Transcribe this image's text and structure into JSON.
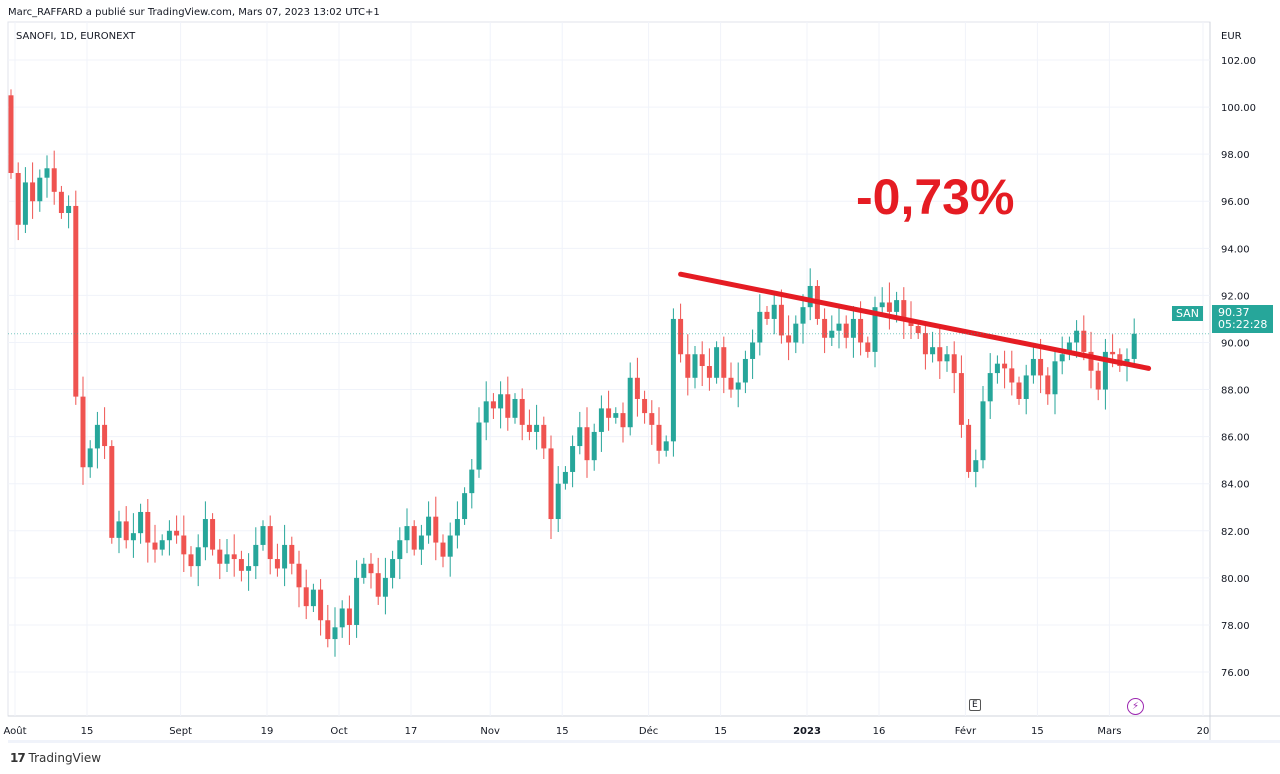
{
  "header": {
    "publisher": "Marc_RAFFARD a publié sur TradingView.com, Mars 07, 2023 13:02 UTC+1",
    "symbol": "SANOFI, 1D, EURONEXT"
  },
  "annotation": "-0,73%",
  "price_badge": {
    "ticker": "SAN",
    "price": "90.37",
    "countdown": "05:22:28",
    "color": "#26a69a"
  },
  "footer": {
    "logo": "TradingView"
  },
  "markers": {
    "earnings": "E"
  },
  "chart_data": {
    "type": "candlestick",
    "currency": "EUR",
    "ylim": [
      74.5,
      103
    ],
    "yticks": [
      "102.00",
      "100.00",
      "98.00",
      "96.00",
      "94.00",
      "92.00",
      "90.00",
      "88.00",
      "86.00",
      "84.00",
      "82.00",
      "80.00",
      "78.00",
      "76.00"
    ],
    "xticks": [
      {
        "label": "Août",
        "i": 0
      },
      {
        "label": "15",
        "i": 10
      },
      {
        "label": "Sept",
        "i": 23
      },
      {
        "label": "19",
        "i": 35
      },
      {
        "label": "Oct",
        "i": 45
      },
      {
        "label": "17",
        "i": 55
      },
      {
        "label": "Nov",
        "i": 66
      },
      {
        "label": "15",
        "i": 76
      },
      {
        "label": "Déc",
        "i": 88
      },
      {
        "label": "15",
        "i": 98
      },
      {
        "label": "2023",
        "i": 110
      },
      {
        "label": "16",
        "i": 120
      },
      {
        "label": "Févr",
        "i": 132
      },
      {
        "label": "15",
        "i": 142
      },
      {
        "label": "Mars",
        "i": 152
      },
      {
        "label": "20",
        "i": 165
      }
    ],
    "first_open": 100.5,
    "closes": [
      97.2,
      95.0,
      96.8,
      96.0,
      97.0,
      97.4,
      96.4,
      95.5,
      95.8,
      87.7,
      84.7,
      85.5,
      86.5,
      85.6,
      81.7,
      82.4,
      81.6,
      81.9,
      82.8,
      81.5,
      81.2,
      81.6,
      82.0,
      81.8,
      81.0,
      80.5,
      81.3,
      82.5,
      81.2,
      80.6,
      81.0,
      80.8,
      80.3,
      80.5,
      81.4,
      82.2,
      80.8,
      80.4,
      81.4,
      80.6,
      79.6,
      78.8,
      79.5,
      78.2,
      77.4,
      77.9,
      78.7,
      78.0,
      80.0,
      80.6,
      80.2,
      79.2,
      80.0,
      80.8,
      81.6,
      82.2,
      81.2,
      81.8,
      82.6,
      81.5,
      80.9,
      81.8,
      82.5,
      83.6,
      84.6,
      86.6,
      87.5,
      87.2,
      87.8,
      86.8,
      87.6,
      86.5,
      86.2,
      86.5,
      85.5,
      82.5,
      84.0,
      84.5,
      85.6,
      86.4,
      85.0,
      86.2,
      87.2,
      86.8,
      87.0,
      86.4,
      88.5,
      87.6,
      87.0,
      86.5,
      85.4,
      85.8,
      91.0,
      89.5,
      88.5,
      89.5,
      89.0,
      88.5,
      89.8,
      88.5,
      88.0,
      88.3,
      89.3,
      90.0,
      91.3,
      91.0,
      91.6,
      90.3,
      90.0,
      90.8,
      91.5,
      92.4,
      91.0,
      90.2,
      90.5,
      90.8,
      90.2,
      91.0,
      90.0,
      89.6,
      91.5,
      91.7,
      91.3,
      91.8,
      91.0,
      90.7,
      90.4,
      89.5,
      89.8,
      89.2,
      89.5,
      88.7,
      86.5,
      84.5,
      85.0,
      87.5,
      88.7,
      89.1,
      88.9,
      88.3,
      87.6,
      88.6,
      89.3,
      88.6,
      87.8,
      89.2,
      89.5,
      90.0,
      90.5,
      89.6,
      88.8,
      88.0,
      89.6,
      89.5,
      89.0,
      89.3,
      90.37
    ],
    "trendline": [
      {
        "i": 93,
        "price": 92.9
      },
      {
        "i": 158,
        "price": 88.9
      }
    ],
    "up_color": "#26a69a",
    "down_color": "#ef5350"
  }
}
